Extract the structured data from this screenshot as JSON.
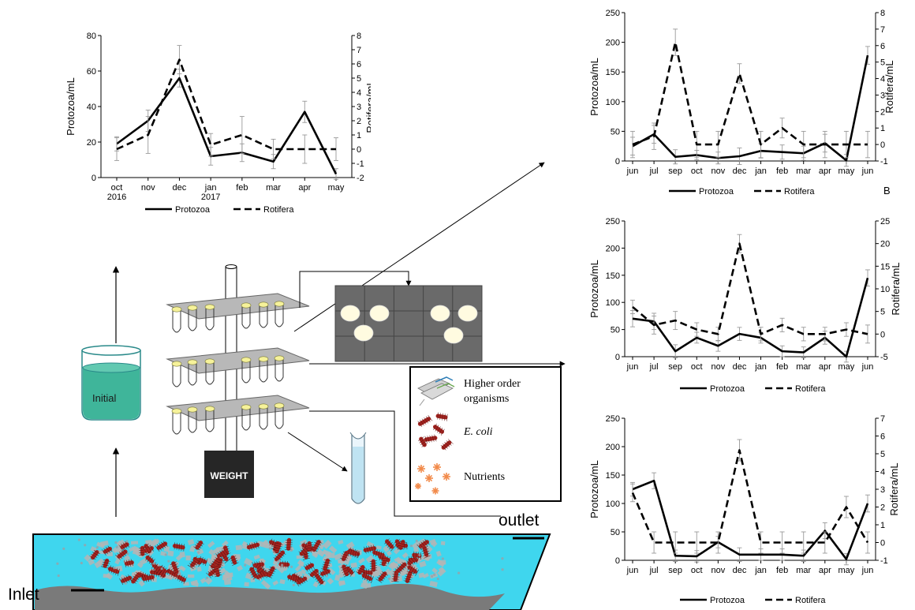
{
  "labels": {
    "inlet": "Inlet",
    "outlet": "outlet",
    "initial": "Initial",
    "weight": "WEIGHT",
    "legend_higher": [
      "Higher order",
      "organisms"
    ],
    "legend_ecoli": "E. coli",
    "legend_nutrients": "Nutrients"
  },
  "colors": {
    "water": "#3fd6ee",
    "beaker_liquid": "#3fb59a",
    "sediment": "#8a8a8a",
    "plate": "#b8b8b8",
    "petri_bg": "#6a6a6a",
    "ecoli": "#a3231f",
    "nutrient": "#f28a4a"
  },
  "chart_data": [
    {
      "id": "main",
      "type": "line",
      "categories": [
        "oct\n2016",
        "nov",
        "dec",
        "jan\n2017",
        "feb",
        "mar",
        "apr",
        "may"
      ],
      "ylabel": "Protozoa/mL",
      "y2label": "Rotifera/mL",
      "ylim": [
        0,
        80
      ],
      "yticks": [
        0,
        20,
        40,
        60,
        80
      ],
      "y2lim": [
        -2,
        8
      ],
      "y2ticks": [
        -2,
        -1,
        0,
        1,
        2,
        3,
        4,
        5,
        6,
        7,
        8
      ],
      "series": [
        {
          "name": "Protozoa",
          "axis": "left",
          "style": "solid",
          "values": [
            19,
            32,
            56,
            12,
            14,
            9,
            37,
            2
          ],
          "errors": [
            4,
            6,
            5,
            5,
            5,
            4,
            6,
            3
          ]
        },
        {
          "name": "Rotifera",
          "axis": "right",
          "style": "dashed",
          "values": [
            0,
            1,
            6.3,
            0.3,
            1,
            0,
            0,
            0
          ],
          "errors": [
            0.8,
            1.3,
            1,
            0.8,
            1.3,
            0.7,
            1,
            0.8
          ]
        }
      ],
      "legend": "bottom"
    },
    {
      "id": "B",
      "type": "line",
      "panel_label": "B",
      "categories": [
        "jun",
        "jul",
        "sep",
        "oct",
        "nov",
        "dec",
        "jan",
        "feb",
        "mar",
        "apr",
        "may",
        "jun"
      ],
      "ylabel": "Protozoa/mL",
      "y2label": "Rotifera/mL",
      "ylim": [
        0,
        250
      ],
      "yticks": [
        0,
        50,
        100,
        150,
        200,
        250
      ],
      "y2lim": [
        -1,
        8
      ],
      "y2ticks": [
        -1,
        0,
        1,
        2,
        3,
        4,
        5,
        6,
        7,
        8
      ],
      "series": [
        {
          "name": "Protozoa",
          "axis": "left",
          "style": "solid",
          "values": [
            25,
            45,
            7,
            10,
            5,
            8,
            17,
            15,
            13,
            30,
            1,
            178
          ],
          "errors": [
            15,
            15,
            12,
            8,
            10,
            14,
            12,
            12,
            12,
            15,
            10,
            15
          ]
        },
        {
          "name": "Rotifera",
          "axis": "right",
          "style": "dashed",
          "values": [
            0,
            0.5,
            6.2,
            0,
            0,
            4.3,
            0,
            1,
            0,
            0,
            0,
            0
          ],
          "errors": [
            0.8,
            0.8,
            0.8,
            0.8,
            0.8,
            0.6,
            0.8,
            0.6,
            0.8,
            0.8,
            0.8,
            0.8
          ]
        }
      ],
      "legend": "bottom"
    },
    {
      "id": "C",
      "type": "line",
      "categories": [
        "jun",
        "jul",
        "sep",
        "oct",
        "nov",
        "dec",
        "jan",
        "feb",
        "mar",
        "apr",
        "may",
        "jun"
      ],
      "ylabel": "Protozoa/mL",
      "y2label": "Rotifera/mL",
      "ylim": [
        0,
        250
      ],
      "yticks": [
        0,
        50,
        100,
        150,
        200,
        250
      ],
      "y2lim": [
        -5,
        25
      ],
      "y2ticks": [
        -5,
        0,
        5,
        10,
        15,
        20,
        25
      ],
      "series": [
        {
          "name": "Protozoa",
          "axis": "left",
          "style": "solid",
          "values": [
            70,
            65,
            10,
            35,
            20,
            42,
            35,
            10,
            8,
            35,
            0,
            145
          ],
          "errors": [
            15,
            15,
            12,
            10,
            10,
            12,
            10,
            10,
            10,
            12,
            10,
            15
          ]
        },
        {
          "name": "Rotifera",
          "axis": "right",
          "style": "dashed",
          "values": [
            6,
            2,
            3,
            1,
            0,
            20,
            0,
            2,
            0,
            0,
            1,
            0
          ],
          "errors": [
            1.5,
            2,
            2,
            1.5,
            1.5,
            2,
            1.5,
            1.5,
            1.5,
            1.5,
            1.5,
            2
          ]
        }
      ],
      "legend": "bottom"
    },
    {
      "id": "D",
      "type": "line",
      "categories": [
        "jun",
        "jul",
        "sep",
        "oct",
        "nov",
        "dec",
        "jan",
        "feb",
        "mar",
        "apr",
        "may",
        "jun"
      ],
      "ylabel": "Protozoa/mL",
      "y2label": "Rotifera/mL",
      "ylim": [
        0,
        250
      ],
      "yticks": [
        0,
        50,
        100,
        150,
        200,
        250
      ],
      "y2lim": [
        -1,
        7
      ],
      "y2ticks": [
        -1,
        0,
        1,
        2,
        3,
        4,
        5,
        6,
        7
      ],
      "series": [
        {
          "name": "Protozoa",
          "axis": "left",
          "style": "solid",
          "values": [
            125,
            140,
            8,
            7,
            32,
            10,
            10,
            10,
            8,
            52,
            2,
            100
          ],
          "errors": [
            12,
            14,
            10,
            10,
            10,
            12,
            10,
            10,
            10,
            14,
            10,
            15
          ]
        },
        {
          "name": "Rotifera",
          "axis": "right",
          "style": "dashed",
          "values": [
            2.8,
            0,
            0,
            0,
            0,
            5.2,
            0,
            0,
            0,
            0,
            2,
            0
          ],
          "errors": [
            0.5,
            0.6,
            0.6,
            0.6,
            0.6,
            0.6,
            0.6,
            0.6,
            0.6,
            0.6,
            0.6,
            0.6
          ]
        }
      ],
      "legend": "bottom"
    }
  ]
}
